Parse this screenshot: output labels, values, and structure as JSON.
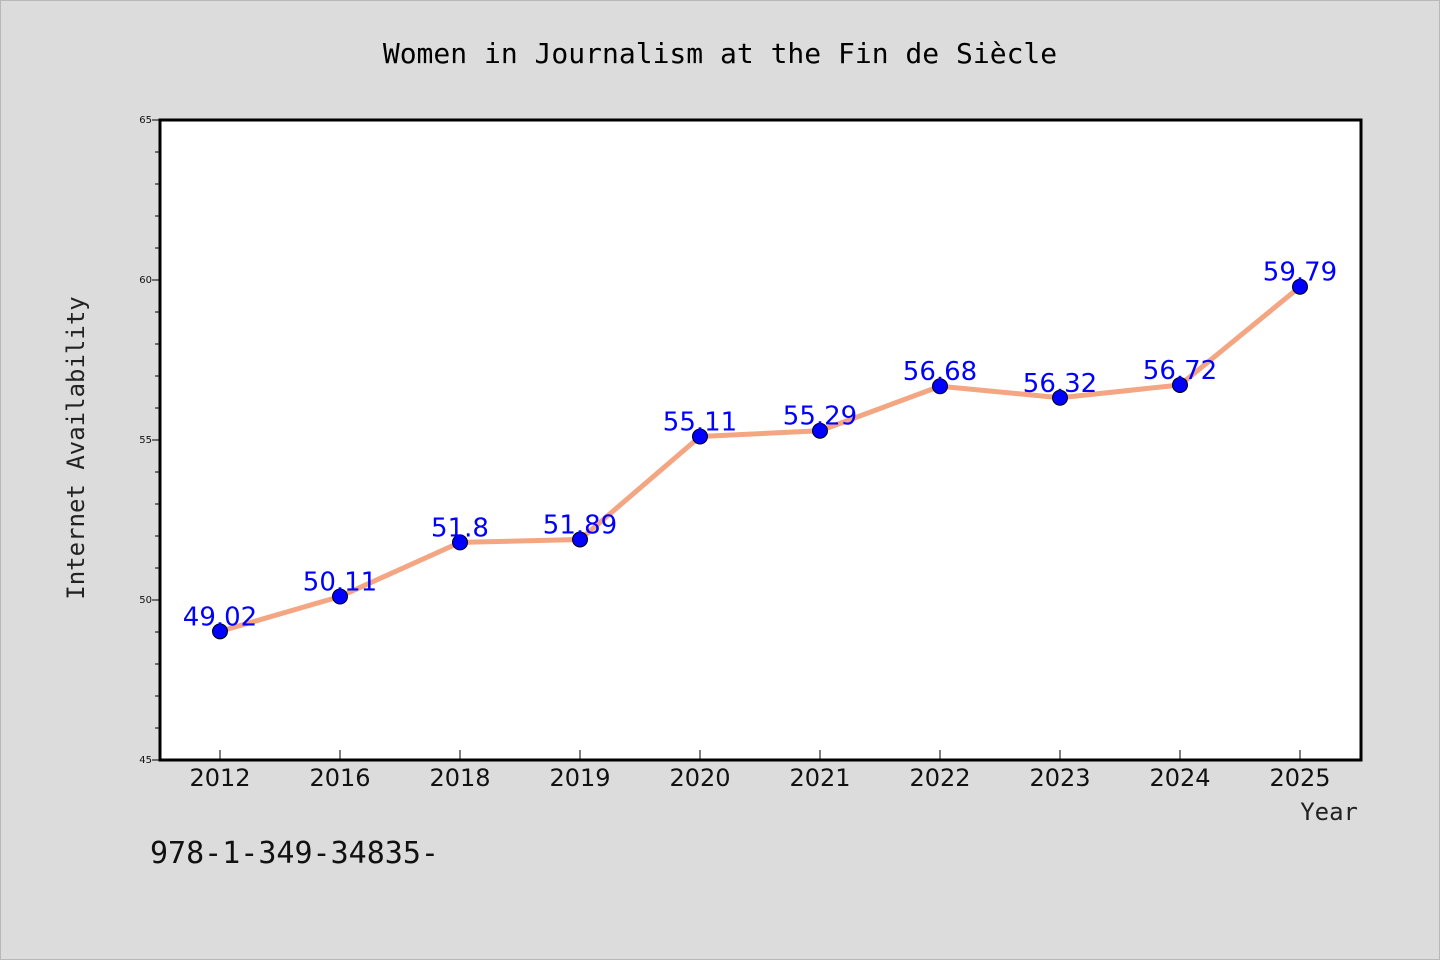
{
  "chart_data": {
    "type": "line",
    "title": "Women in Journalism at the Fin de Siècle",
    "xlabel": "Year",
    "ylabel": "Internet Availability",
    "categories": [
      "2012",
      "2016",
      "2018",
      "2019",
      "2020",
      "2021",
      "2022",
      "2023",
      "2024",
      "2025"
    ],
    "series": [
      {
        "values": [
          49.02,
          50.11,
          51.8,
          51.89,
          55.11,
          55.29,
          56.68,
          56.32,
          56.72,
          59.79
        ],
        "data_labels": [
          "49.02",
          "50.11",
          "51.8",
          "51.89",
          "55.11",
          "55.29",
          "56.68",
          "56.32",
          "56.72",
          "59.79"
        ],
        "line_color": "#f4a582",
        "marker_color": "#0000ff"
      }
    ],
    "ylim": [
      45,
      65
    ],
    "y_ticks": [
      "45",
      "50",
      "55",
      "60",
      "65"
    ],
    "grid": false,
    "legend": "none"
  },
  "footnote": "978-1-349-34835-"
}
